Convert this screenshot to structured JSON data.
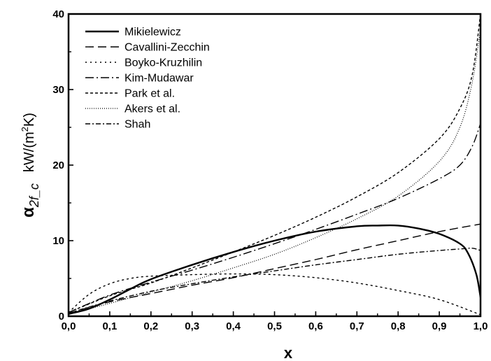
{
  "chart_data": {
    "type": "line",
    "xlabel": "x",
    "ylabel_symbol": "α",
    "ylabel_subscript": "2f_c",
    "ylabel_unit_prefix": "kW/(m",
    "ylabel_unit_sup": "2",
    "ylabel_unit_suffix": "K)",
    "xlim": [
      0,
      1
    ],
    "ylim": [
      0,
      40
    ],
    "x_ticks": [
      "0,0",
      "0,1",
      "0,2",
      "0,3",
      "0,4",
      "0,5",
      "0,6",
      "0,7",
      "0,8",
      "0,9",
      "1,0"
    ],
    "y_ticks": [
      "0",
      "10",
      "20",
      "30",
      "40"
    ],
    "grid": false,
    "legend_position": "top-left",
    "series": [
      {
        "name": "Mikielewicz",
        "dash": "solid",
        "points": [
          [
            0.0,
            0.3
          ],
          [
            0.05,
            1.0
          ],
          [
            0.1,
            2.2
          ],
          [
            0.15,
            3.6
          ],
          [
            0.2,
            4.9
          ],
          [
            0.3,
            6.8
          ],
          [
            0.4,
            8.5
          ],
          [
            0.5,
            10.0
          ],
          [
            0.6,
            11.2
          ],
          [
            0.7,
            11.9
          ],
          [
            0.75,
            12.0
          ],
          [
            0.8,
            12.0
          ],
          [
            0.85,
            11.6
          ],
          [
            0.9,
            10.9
          ],
          [
            0.95,
            9.6
          ],
          [
            0.97,
            8.3
          ],
          [
            0.99,
            5.5
          ],
          [
            1.0,
            2.5
          ]
        ]
      },
      {
        "name": "Cavallini-Zecchin",
        "dash": "long-dash",
        "points": [
          [
            0.0,
            0.4
          ],
          [
            0.1,
            1.9
          ],
          [
            0.2,
            3.0
          ],
          [
            0.3,
            4.1
          ],
          [
            0.4,
            5.1
          ],
          [
            0.5,
            6.3
          ],
          [
            0.6,
            7.5
          ],
          [
            0.7,
            8.8
          ],
          [
            0.8,
            10.0
          ],
          [
            0.9,
            11.2
          ],
          [
            1.0,
            12.2
          ]
        ]
      },
      {
        "name": "Boyko-Kruzhilin",
        "dash": "dot",
        "points": [
          [
            0.0,
            0.5
          ],
          [
            0.05,
            2.9
          ],
          [
            0.1,
            4.3
          ],
          [
            0.15,
            5.0
          ],
          [
            0.2,
            5.3
          ],
          [
            0.3,
            5.5
          ],
          [
            0.4,
            5.6
          ],
          [
            0.5,
            5.5
          ],
          [
            0.6,
            5.1
          ],
          [
            0.7,
            4.4
          ],
          [
            0.8,
            3.4
          ],
          [
            0.9,
            2.2
          ],
          [
            1.0,
            0.2
          ]
        ]
      },
      {
        "name": "Kim-Mudawar",
        "dash": "dash-dot",
        "points": [
          [
            0.0,
            0.5
          ],
          [
            0.1,
            2.8
          ],
          [
            0.2,
            4.5
          ],
          [
            0.3,
            6.1
          ],
          [
            0.4,
            7.8
          ],
          [
            0.5,
            9.6
          ],
          [
            0.6,
            11.5
          ],
          [
            0.7,
            13.5
          ],
          [
            0.8,
            15.6
          ],
          [
            0.9,
            18.2
          ],
          [
            0.95,
            20.0
          ],
          [
            0.98,
            22.5
          ],
          [
            1.0,
            25.5
          ]
        ]
      },
      {
        "name": "Park et al.",
        "dash": "short-dash",
        "points": [
          [
            0.0,
            0.5
          ],
          [
            0.1,
            2.7
          ],
          [
            0.2,
            4.4
          ],
          [
            0.3,
            6.4
          ],
          [
            0.4,
            8.5
          ],
          [
            0.5,
            10.7
          ],
          [
            0.6,
            13.1
          ],
          [
            0.7,
            15.8
          ],
          [
            0.8,
            19.0
          ],
          [
            0.9,
            23.5
          ],
          [
            0.95,
            27.5
          ],
          [
            0.98,
            32.0
          ],
          [
            1.0,
            40.0
          ]
        ]
      },
      {
        "name": "Akers et al.",
        "dash": "fine-dot",
        "points": [
          [
            0.0,
            0.3
          ],
          [
            0.1,
            1.7
          ],
          [
            0.2,
            3.2
          ],
          [
            0.3,
            4.7
          ],
          [
            0.4,
            6.4
          ],
          [
            0.5,
            8.2
          ],
          [
            0.6,
            10.4
          ],
          [
            0.7,
            12.9
          ],
          [
            0.8,
            15.9
          ],
          [
            0.9,
            20.5
          ],
          [
            0.95,
            25.0
          ],
          [
            0.98,
            31.0
          ],
          [
            1.0,
            38.0
          ]
        ]
      },
      {
        "name": "Shah",
        "dash": "dash-dot-short",
        "points": [
          [
            0.0,
            0.4
          ],
          [
            0.1,
            2.0
          ],
          [
            0.2,
            3.3
          ],
          [
            0.3,
            4.3
          ],
          [
            0.4,
            5.2
          ],
          [
            0.5,
            6.0
          ],
          [
            0.6,
            6.8
          ],
          [
            0.7,
            7.5
          ],
          [
            0.8,
            8.2
          ],
          [
            0.9,
            8.7
          ],
          [
            0.95,
            8.9
          ],
          [
            0.98,
            9.0
          ],
          [
            1.0,
            8.7
          ]
        ]
      }
    ]
  }
}
